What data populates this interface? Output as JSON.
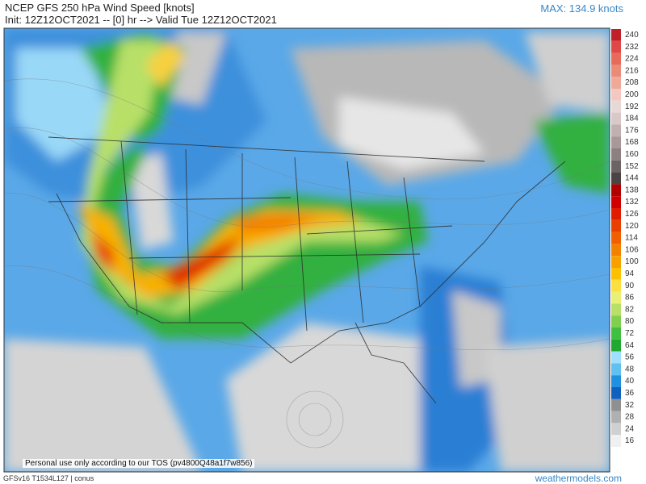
{
  "header": {
    "title": "NCEP GFS 250 hPa Wind Speed [knots]",
    "subtitle": "Init: 12Z12OCT2021 -- [0] hr --> Valid Tue 12Z12OCT2021",
    "max": "MAX: 134.9 knots"
  },
  "legend": {
    "items": [
      {
        "label": "240",
        "color": "#c0202a"
      },
      {
        "label": "232",
        "color": "#e04848"
      },
      {
        "label": "224",
        "color": "#e86a5a"
      },
      {
        "label": "216",
        "color": "#ec8a78"
      },
      {
        "label": "208",
        "color": "#f0a898"
      },
      {
        "label": "200",
        "color": "#f2c8c0"
      },
      {
        "label": "192",
        "color": "#e8d8d8"
      },
      {
        "label": "184",
        "color": "#d8c8c8"
      },
      {
        "label": "176",
        "color": "#c0b0b0"
      },
      {
        "label": "168",
        "color": "#a89898"
      },
      {
        "label": "160",
        "color": "#8c8080"
      },
      {
        "label": "152",
        "color": "#6c6464"
      },
      {
        "label": "144",
        "color": "#4a4444"
      },
      {
        "label": "138",
        "color": "#b00000"
      },
      {
        "label": "132",
        "color": "#d00000"
      },
      {
        "label": "126",
        "color": "#e01c00"
      },
      {
        "label": "120",
        "color": "#e84000"
      },
      {
        "label": "114",
        "color": "#f06000"
      },
      {
        "label": "106",
        "color": "#f48000"
      },
      {
        "label": "100",
        "color": "#f8a000"
      },
      {
        "label": "94",
        "color": "#fcc000"
      },
      {
        "label": "90",
        "color": "#fce040"
      },
      {
        "label": "86",
        "color": "#e8f078"
      },
      {
        "label": "82",
        "color": "#b8e068"
      },
      {
        "label": "80",
        "color": "#80d050"
      },
      {
        "label": "72",
        "color": "#40c040"
      },
      {
        "label": "64",
        "color": "#20a830"
      },
      {
        "label": "56",
        "color": "#a0e0ff"
      },
      {
        "label": "48",
        "color": "#60c0f0"
      },
      {
        "label": "40",
        "color": "#2090e0"
      },
      {
        "label": "36",
        "color": "#1060c0"
      },
      {
        "label": "32",
        "color": "#909090"
      },
      {
        "label": "28",
        "color": "#b0b0b0"
      },
      {
        "label": "24",
        "color": "#d0d0d0"
      },
      {
        "label": "16",
        "color": "#f0f0f0"
      }
    ]
  },
  "footer": {
    "notice": "Personal use only according to our TOS (pv4800Q48a1f7w856)",
    "model": "GFSv16 T1534L127 | conus",
    "site": "weathermodels.com"
  }
}
